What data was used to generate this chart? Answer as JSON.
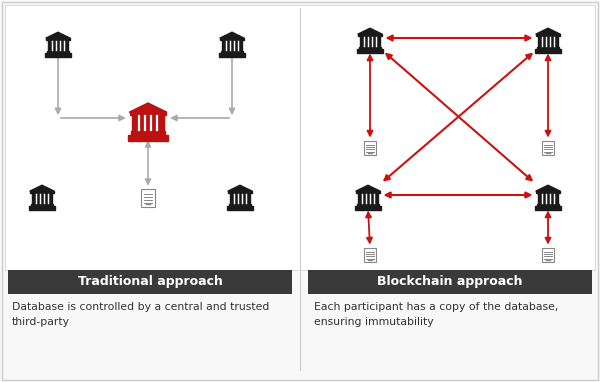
{
  "bg_color": "#f8f8f8",
  "panel_bg": "#ffffff",
  "left_title": "Traditional approach",
  "right_title": "Blockchain approach",
  "left_desc": "Database is controlled by a central and trusted\nthird-party",
  "right_desc": "Each participant has a copy of the database,\nensuring immutability",
  "title_bar_color": "#3a3a3a",
  "title_text_color": "#ffffff",
  "arrow_color_gray": "#aaaaaa",
  "arrow_color_red": "#cc1111",
  "bank_color_black": "#1a1a1a",
  "bank_color_red": "#bb1111",
  "desc_text_color": "#333333",
  "border_color": "#cccccc"
}
